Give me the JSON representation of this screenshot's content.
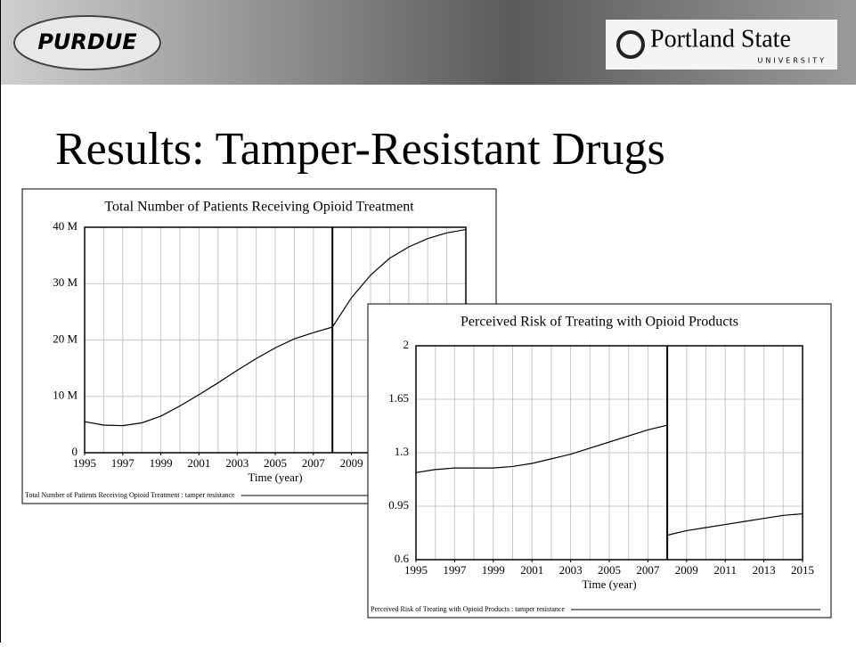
{
  "header": {
    "left_logo": "PURDUE",
    "right_logo": "Portland State",
    "right_logo_sub": "UNIVERSITY"
  },
  "slide_title": "Results: Tamper-Resistant Drugs",
  "chart_data": [
    {
      "type": "line",
      "title": "Total Number of Patients Receiving Opioid Treatment",
      "x_label": "Time (year)",
      "x": [
        1995,
        1996,
        1997,
        1998,
        1999,
        2000,
        2001,
        2002,
        2003,
        2004,
        2005,
        2006,
        2007,
        2008,
        2009,
        2010,
        2011,
        2012,
        2013,
        2014,
        2015
      ],
      "series": [
        {
          "name": "Total Number of Patients Receiving Opioid Treatment : tamper resistance",
          "color": "#000000",
          "values": [
            5500000,
            4900000,
            4800000,
            5300000,
            6500000,
            8300000,
            10300000,
            12400000,
            14600000,
            16700000,
            18600000,
            20200000,
            21300000,
            22300000,
            27500000,
            31500000,
            34500000,
            36500000,
            38000000,
            39000000,
            39600000
          ]
        }
      ],
      "marker_x": 2008,
      "xlim": [
        1995,
        2015
      ],
      "xticks": [
        1995,
        1997,
        1999,
        2001,
        2003,
        2005,
        2007,
        2009,
        2011,
        2013,
        2015
      ],
      "ylim": [
        0,
        40000000
      ],
      "yticks": [
        0,
        {
          "value": 10000000,
          "label": "10 M"
        },
        {
          "value": 20000000,
          "label": "20 M"
        },
        {
          "value": 30000000,
          "label": "30 M"
        },
        {
          "value": 40000000,
          "label": "40 M"
        }
      ],
      "grid": true
    },
    {
      "type": "line",
      "title": "Perceived Risk of Treating with Opioid Products",
      "x_label": "Time (year)",
      "x": [
        1995,
        1996,
        1997,
        1998,
        1999,
        2000,
        2001,
        2002,
        2003,
        2004,
        2005,
        2006,
        2007,
        2008,
        2008,
        2009,
        2010,
        2011,
        2012,
        2013,
        2014,
        2015
      ],
      "series": [
        {
          "name": "Perceived Risk of Treating with Opioid Products : tamper resistance",
          "color": "#000000",
          "values": [
            1.17,
            1.19,
            1.2,
            1.2,
            1.2,
            1.21,
            1.23,
            1.26,
            1.29,
            1.33,
            1.37,
            1.41,
            1.45,
            1.48,
            0.76,
            0.79,
            0.81,
            0.83,
            0.85,
            0.87,
            0.89,
            0.9
          ]
        }
      ],
      "marker_x": 2008,
      "xlim": [
        1995,
        2015
      ],
      "xticks": [
        1995,
        1997,
        1999,
        2001,
        2003,
        2005,
        2007,
        2009,
        2011,
        2013,
        2015
      ],
      "ylim": [
        0.6,
        2
      ],
      "yticks": [
        0.6,
        0.95,
        1.3,
        1.65,
        2
      ],
      "grid": true
    }
  ]
}
